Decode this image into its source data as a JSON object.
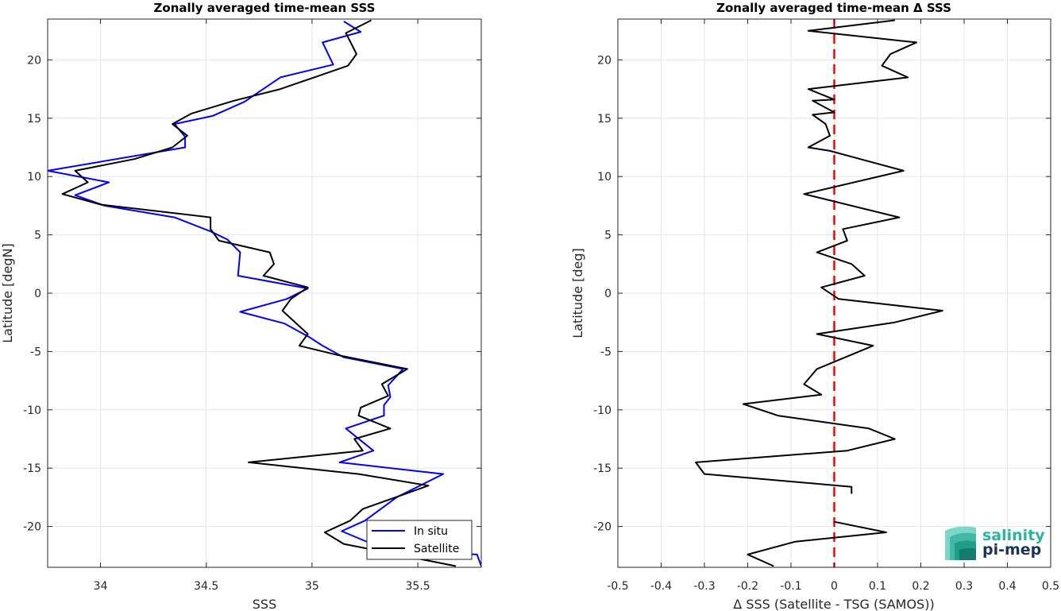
{
  "chart_data": [
    {
      "type": "line",
      "title": "Zonally averaged time-mean SSS",
      "xlabel": "SSS",
      "ylabel": "Latitude [degN]",
      "xlim": [
        33.75,
        35.8
      ],
      "ylim": [
        -23.5,
        23.5
      ],
      "xticks": [
        34,
        34.5,
        35,
        35.5
      ],
      "xtick_labels": [
        "34",
        "34.5",
        "35",
        "35.5"
      ],
      "yticks": [
        -20,
        -15,
        -10,
        -5,
        0,
        5,
        10,
        15,
        20
      ],
      "ytick_labels": [
        "-20",
        "-15",
        "-10",
        "-5",
        "0",
        "5",
        "10",
        "15",
        "20"
      ],
      "grid": true,
      "legend": "bottom-right",
      "series": [
        {
          "name": "In situ",
          "color": "#0000ff",
          "points": [
            [
              35.15,
              23.3
            ],
            [
              35.23,
              22.4
            ],
            [
              35.05,
              21.5
            ],
            [
              35.1,
              19.6
            ],
            [
              34.85,
              18.5
            ],
            [
              34.68,
              16.4
            ],
            [
              34.53,
              15.2
            ],
            [
              34.35,
              14.5
            ],
            [
              34.4,
              13.4
            ],
            [
              34.4,
              12.5
            ],
            [
              33.75,
              10.5
            ],
            [
              34.04,
              9.5
            ],
            [
              33.88,
              8.4
            ],
            [
              34.02,
              7.5
            ],
            [
              34.35,
              6.5
            ],
            [
              34.52,
              5.3
            ],
            [
              34.6,
              4.6
            ],
            [
              34.66,
              3.5
            ],
            [
              34.65,
              1.5
            ],
            [
              34.98,
              0.4
            ],
            [
              34.88,
              -0.5
            ],
            [
              34.66,
              -1.6
            ],
            [
              34.87,
              -2.6
            ],
            [
              34.99,
              -3.8
            ],
            [
              35.05,
              -4.5
            ],
            [
              35.15,
              -5.5
            ],
            [
              35.43,
              -6.5
            ],
            [
              35.36,
              -7.9
            ],
            [
              35.37,
              -8.9
            ],
            [
              35.34,
              -9.6
            ],
            [
              35.34,
              -10.5
            ],
            [
              35.16,
              -11.6
            ],
            [
              35.29,
              -13.5
            ],
            [
              35.13,
              -14.5
            ],
            [
              35.62,
              -15.5
            ],
            [
              35.4,
              -17.5
            ],
            [
              35.25,
              -19.5
            ],
            [
              35.14,
              -20.4
            ],
            [
              35.35,
              -22.0
            ],
            [
              35.78,
              -22.4
            ],
            [
              35.8,
              -23.4
            ]
          ]
        },
        {
          "name": "Satellite",
          "color": "#000000",
          "points": [
            [
              35.28,
              23.4
            ],
            [
              35.16,
              22.3
            ],
            [
              35.21,
              20.5
            ],
            [
              35.17,
              19.5
            ],
            [
              35.01,
              18.5
            ],
            [
              34.85,
              17.5
            ],
            [
              34.63,
              16.5
            ],
            [
              34.43,
              15.4
            ],
            [
              34.34,
              14.5
            ],
            [
              34.41,
              13.5
            ],
            [
              34.34,
              12.5
            ],
            [
              34.16,
              11.5
            ],
            [
              33.88,
              10.5
            ],
            [
              33.94,
              9.5
            ],
            [
              33.82,
              8.5
            ],
            [
              34.0,
              7.6
            ],
            [
              34.52,
              6.5
            ],
            [
              34.52,
              5.5
            ],
            [
              34.56,
              4.5
            ],
            [
              34.8,
              3.5
            ],
            [
              34.82,
              2.5
            ],
            [
              34.77,
              1.5
            ],
            [
              34.98,
              0.5
            ],
            [
              34.9,
              -0.5
            ],
            [
              34.86,
              -1.5
            ],
            [
              34.98,
              -3.5
            ],
            [
              34.94,
              -4.5
            ],
            [
              35.12,
              -5.3
            ],
            [
              35.45,
              -6.5
            ],
            [
              35.33,
              -7.8
            ],
            [
              35.36,
              -8.8
            ],
            [
              35.23,
              -9.8
            ],
            [
              35.22,
              -10.5
            ],
            [
              35.37,
              -11.6
            ],
            [
              35.2,
              -12.5
            ],
            [
              35.24,
              -13.5
            ],
            [
              34.7,
              -14.5
            ],
            [
              35.22,
              -15.5
            ],
            [
              35.55,
              -16.5
            ],
            [
              35.24,
              -18.5
            ],
            [
              35.18,
              -19.5
            ],
            [
              35.06,
              -20.5
            ],
            [
              35.15,
              -21.5
            ],
            [
              35.68,
              -23.4
            ]
          ]
        }
      ]
    },
    {
      "type": "line",
      "title": "Zonally averaged time-mean Δ SSS",
      "xlabel": "Δ SSS (Satellite - TSG (SAMOS))",
      "ylabel": "Latitude [deg]",
      "xlim": [
        -0.5,
        0.5
      ],
      "ylim": [
        -23.5,
        23.5
      ],
      "xticks": [
        -0.5,
        -0.4,
        -0.3,
        -0.2,
        -0.1,
        0,
        0.1,
        0.2,
        0.3,
        0.4,
        0.5
      ],
      "xtick_labels": [
        "-0.5",
        "-0.4",
        "-0.3",
        "-0.2",
        "-0.1",
        "0",
        "0.1",
        "0.2",
        "0.3",
        "0.4",
        "0.5"
      ],
      "yticks": [
        -20,
        -15,
        -10,
        -5,
        0,
        5,
        10,
        15,
        20
      ],
      "ytick_labels": [
        "-20",
        "-15",
        "-10",
        "-5",
        "0",
        "5",
        "10",
        "15",
        "20"
      ],
      "grid": true,
      "reference_line": {
        "x": 0,
        "color": "#ff0000",
        "style": "dashed"
      },
      "series": [
        {
          "color": "#000000",
          "segments": [
            [
              [
                0.14,
                23.4
              ],
              [
                -0.06,
                22.5
              ],
              [
                0.19,
                21.5
              ],
              [
                0.13,
                20.5
              ],
              [
                0.11,
                19.5
              ],
              [
                0.17,
                18.5
              ],
              [
                -0.06,
                17.5
              ],
              [
                0.0,
                16.6
              ],
              [
                -0.05,
                16.5
              ],
              [
                0.0,
                15.5
              ],
              [
                -0.05,
                15.3
              ],
              [
                -0.02,
                14.5
              ],
              [
                -0.01,
                13.5
              ],
              [
                -0.02,
                13.3
              ],
              [
                -0.06,
                12.5
              ],
              [
                -0.01,
                12.2
              ],
              [
                0.06,
                11.5
              ],
              [
                0.16,
                10.5
              ],
              [
                -0.07,
                8.5
              ],
              [
                0.15,
                6.5
              ],
              [
                0.02,
                5.5
              ],
              [
                0.03,
                4.5
              ],
              [
                -0.04,
                3.5
              ],
              [
                0.04,
                2.5
              ],
              [
                0.07,
                1.5
              ],
              [
                -0.03,
                0.5
              ],
              [
                0.01,
                -0.5
              ],
              [
                0.25,
                -1.5
              ],
              [
                0.14,
                -2.5
              ],
              [
                -0.04,
                -3.5
              ],
              [
                0.09,
                -4.5
              ],
              [
                -0.04,
                -6.5
              ],
              [
                -0.07,
                -7.8
              ],
              [
                -0.03,
                -8.7
              ],
              [
                -0.21,
                -9.5
              ],
              [
                -0.13,
                -10.5
              ],
              [
                0.08,
                -11.6
              ],
              [
                0.14,
                -12.5
              ],
              [
                0.03,
                -13.5
              ],
              [
                -0.32,
                -14.5
              ],
              [
                -0.3,
                -15.5
              ],
              [
                0.04,
                -16.6
              ],
              [
                0.04,
                -17.2
              ]
            ],
            [
              [
                0.0,
                -19.6
              ],
              [
                0.12,
                -20.5
              ],
              [
                -0.09,
                -21.3
              ],
              [
                -0.2,
                -22.4
              ],
              [
                -0.14,
                -23.4
              ]
            ]
          ]
        }
      ]
    }
  ],
  "logo": {
    "line1": "salinity",
    "line2": "pi-mep",
    "color_line1": "#2bb3a0",
    "color_line2": "#1b3557"
  }
}
